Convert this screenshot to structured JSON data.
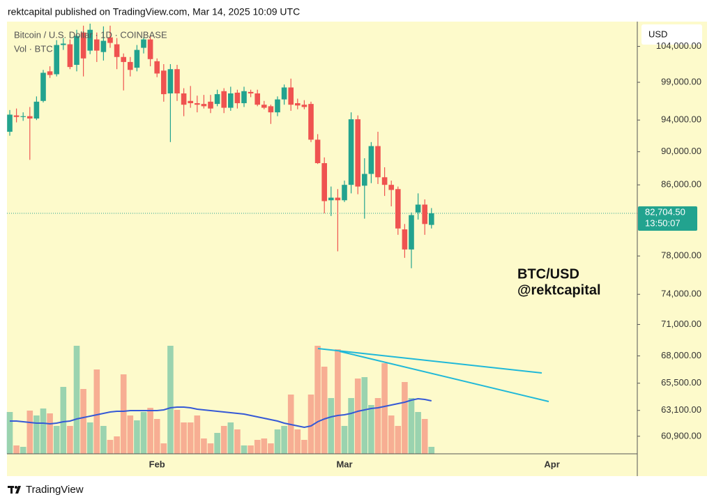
{
  "header": {
    "publisher": "rektcapital published on TradingView.com, Mar 14, 2025 10:09 UTC"
  },
  "footer": {
    "brand": "TradingView"
  },
  "chart_data": {
    "type": "candlestick",
    "title": "Bitcoin / U.S. Dollar · 1D · COINBASE",
    "currency": "USD",
    "annotation": [
      "BTC/USD",
      "@rektcapital"
    ],
    "categories": [
      null,
      null,
      null,
      null,
      null,
      null,
      null,
      null,
      null,
      null,
      null,
      null,
      null,
      null,
      null,
      null,
      null,
      null,
      null,
      null,
      null,
      null,
      "Feb",
      null,
      null,
      null,
      null,
      null,
      null,
      null,
      null,
      null,
      null,
      null,
      null,
      null,
      null,
      null,
      null,
      null,
      null,
      null,
      null,
      null,
      null,
      null,
      null,
      null,
      null,
      null,
      "Mar",
      null,
      null,
      null,
      null,
      null,
      null,
      null,
      null,
      null,
      null,
      null,
      null,
      null,
      null,
      null,
      null,
      null,
      null,
      null,
      null,
      null,
      null,
      null,
      null,
      null,
      null,
      null,
      null,
      null,
      null,
      "Apr",
      null,
      null,
      null,
      null,
      null,
      null,
      null,
      null,
      null,
      null,
      null,
      null
    ],
    "open": [
      92500,
      94600,
      94400,
      94500,
      94200,
      96500,
      100500,
      100100,
      104200,
      104300,
      101400,
      106000,
      103400,
      105000,
      103200,
      105300,
      104300,
      102500,
      101800,
      101000,
      103800,
      105000,
      101900,
      100600,
      97500,
      100800,
      97500,
      96500,
      96200,
      96100,
      96400,
      96100,
      97800,
      95600,
      97600,
      96200,
      97700,
      97500,
      96000,
      95800,
      95000,
      96700,
      98300,
      96200,
      96000,
      96100,
      91500,
      88600,
      84200,
      84500,
      84200,
      86000,
      94100,
      85900,
      87300,
      90700,
      86900,
      86000,
      85500,
      80900,
      78700,
      82800,
      83700,
      81400,
      null,
      null,
      null,
      null,
      null,
      null,
      null,
      null,
      null,
      null,
      null,
      null,
      null,
      null,
      null,
      null,
      null,
      null,
      null,
      null,
      null,
      null,
      null,
      null,
      null,
      null,
      null,
      null,
      null,
      null
    ],
    "high": [
      95300,
      95500,
      95000,
      95700,
      97100,
      100700,
      101200,
      104900,
      105200,
      105000,
      106400,
      107000,
      107300,
      106000,
      106900,
      107000,
      105200,
      103000,
      102500,
      104200,
      105300,
      105500,
      102300,
      101500,
      101500,
      101400,
      98200,
      98500,
      97200,
      97300,
      97300,
      98000,
      98200,
      98400,
      98000,
      98400,
      98000,
      98000,
      96500,
      96000,
      97100,
      98700,
      99500,
      96800,
      96600,
      96400,
      92200,
      89300,
      85800,
      85500,
      86500,
      95000,
      94600,
      89200,
      91200,
      92500,
      88100,
      86500,
      85800,
      81500,
      82800,
      85000,
      84300,
      83300,
      null,
      null,
      null,
      null,
      null,
      null,
      null,
      null,
      null,
      null,
      null,
      null,
      null,
      null,
      null,
      null,
      null,
      null,
      null,
      null,
      null,
      null,
      null,
      null,
      null,
      null,
      null,
      null,
      null,
      null
    ],
    "low": [
      92000,
      93700,
      93900,
      89000,
      94000,
      96300,
      99600,
      99800,
      103500,
      100800,
      100500,
      99800,
      102900,
      101800,
      102000,
      103800,
      100800,
      97900,
      99800,
      100500,
      103000,
      101200,
      99700,
      96400,
      91200,
      96500,
      94500,
      95600,
      95000,
      95500,
      94900,
      95800,
      94900,
      95200,
      95500,
      95700,
      97000,
      95800,
      95400,
      93500,
      94500,
      96000,
      95200,
      95400,
      95400,
      91200,
      88500,
      82700,
      82400,
      78500,
      84000,
      85000,
      84900,
      82100,
      86200,
      86100,
      84700,
      83500,
      80300,
      77800,
      76700,
      82000,
      80300,
      81000,
      null,
      null,
      null,
      null,
      null,
      null,
      null,
      null,
      null,
      null,
      null,
      null,
      null,
      null,
      null,
      null,
      null,
      null,
      null,
      null,
      null,
      null,
      null,
      null,
      null,
      null,
      null,
      null,
      null,
      null
    ],
    "close": [
      94700,
      94400,
      94500,
      94200,
      96400,
      100300,
      100000,
      104200,
      104400,
      101100,
      105500,
      102300,
      106400,
      103400,
      104800,
      104500,
      102500,
      101800,
      100700,
      103500,
      105000,
      102200,
      100200,
      97400,
      100800,
      97500,
      96000,
      96200,
      96000,
      95800,
      95500,
      97400,
      95600,
      97500,
      96200,
      97800,
      97500,
      96000,
      95600,
      95000,
      96700,
      98300,
      96000,
      95900,
      95700,
      91500,
      88600,
      84100,
      84500,
      84200,
      86000,
      94100,
      85800,
      87300,
      90700,
      86900,
      86000,
      85400,
      81000,
      78700,
      82500,
      83700,
      81500,
      82704.5,
      null,
      null,
      null,
      null,
      null,
      null,
      null,
      null,
      null,
      null,
      null,
      null,
      null,
      null,
      null,
      null,
      null,
      null,
      null,
      null,
      null,
      null,
      null,
      null,
      null,
      null,
      null,
      null,
      null,
      null
    ],
    "up_color": "#22a38f",
    "down_color": "#ef5350",
    "volume": {
      "label": "Vol · BTC",
      "values": [
        60,
        12,
        10,
        62,
        55,
        65,
        58,
        40,
        96,
        40,
        155,
        93,
        45,
        121,
        40,
        20,
        25,
        114,
        55,
        48,
        60,
        66,
        50,
        15,
        155,
        63,
        45,
        45,
        55,
        22,
        15,
        30,
        40,
        45,
        35,
        12,
        12,
        20,
        22,
        15,
        35,
        40,
        85,
        35,
        20,
        85,
        155,
        125,
        80,
        150,
        40,
        80,
        108,
        110,
        70,
        80,
        130,
        55,
        40,
        103,
        80,
        60,
        50,
        10,
        null,
        null,
        null,
        null,
        null,
        null,
        null,
        null,
        null,
        null,
        null,
        null,
        null,
        null,
        null,
        null,
        null,
        null,
        null,
        null,
        null,
        null,
        null,
        null,
        null,
        null,
        null,
        null,
        null,
        null
      ],
      "ma": [
        47,
        47,
        46,
        45,
        44,
        44,
        43,
        44,
        46,
        47,
        50,
        52,
        54,
        56,
        58,
        60,
        61,
        61,
        62,
        62,
        62,
        62,
        62,
        63,
        66,
        67,
        67,
        66,
        64,
        63,
        62,
        61,
        60,
        59,
        58,
        57,
        55,
        53,
        51,
        49,
        47,
        44,
        42,
        40,
        38,
        40,
        46,
        50,
        53,
        55,
        56,
        58,
        61,
        63,
        65,
        66,
        68,
        70,
        72,
        74,
        77,
        79,
        78,
        76,
        null,
        null,
        null,
        null,
        null,
        null,
        null,
        null,
        null,
        null,
        null,
        null,
        null,
        null,
        null,
        null,
        null,
        null,
        null,
        null,
        null,
        null,
        null,
        null,
        null,
        null,
        null,
        null,
        null,
        null
      ],
      "ma_color": "#3559d6",
      "ylim": [
        0,
        620
      ]
    },
    "log_scale": true,
    "ylim": [
      59450,
      107600
    ],
    "yticks": [
      {
        "value": 104000,
        "label": "104,000.00"
      },
      {
        "value": 99000,
        "label": "99,000.00"
      },
      {
        "value": 94000,
        "label": "94,000.00"
      },
      {
        "value": 90000,
        "label": "90,000.00"
      },
      {
        "value": 86000,
        "label": "86,000.00"
      },
      {
        "value": 78000,
        "label": "78,000.00"
      },
      {
        "value": 74000,
        "label": "74,000.00"
      },
      {
        "value": 71000,
        "label": "71,000.00"
      },
      {
        "value": 68000,
        "label": "68,000.00"
      },
      {
        "value": 65500,
        "label": "65,500.00"
      },
      {
        "value": 63100,
        "label": "63,100.00"
      },
      {
        "value": 60900,
        "label": "60,900.00"
      }
    ],
    "last_price": {
      "value": 82704.5,
      "label": "82,704.50"
    },
    "countdown": "13:50:07"
  }
}
